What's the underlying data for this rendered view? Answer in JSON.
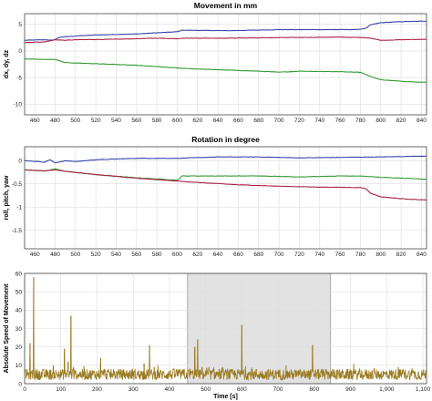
{
  "chart_data": [
    {
      "type": "line",
      "title": "Movement in mm",
      "xlabel": "",
      "ylabel": "dx, dy, dz",
      "xlim": [
        450,
        845
      ],
      "ylim": [
        -12,
        7
      ],
      "xticks": [
        460,
        480,
        500,
        520,
        540,
        560,
        580,
        600,
        620,
        640,
        660,
        680,
        700,
        720,
        740,
        760,
        780,
        800,
        820,
        840
      ],
      "yticks": [
        5,
        0,
        -5,
        -10
      ],
      "grid": true,
      "series": [
        {
          "color": "#3344aa",
          "x": [
            450,
            470,
            478,
            485,
            500,
            520,
            560,
            600,
            605,
            650,
            700,
            750,
            775,
            785,
            790,
            800,
            820,
            845
          ],
          "y": [
            2.0,
            2.1,
            2.0,
            2.6,
            2.8,
            3.0,
            3.2,
            3.6,
            3.9,
            3.8,
            4.0,
            4.0,
            4.0,
            4.2,
            4.9,
            5.3,
            5.5,
            5.6
          ]
        },
        {
          "color": "#aa2244",
          "x": [
            450,
            470,
            480,
            490,
            500,
            540,
            580,
            600,
            605,
            650,
            700,
            760,
            785,
            790,
            800,
            820,
            845
          ],
          "y": [
            1.6,
            1.7,
            2.1,
            2.0,
            2.1,
            2.2,
            2.4,
            2.3,
            2.4,
            2.4,
            2.5,
            2.6,
            2.5,
            2.4,
            2.0,
            2.1,
            2.2
          ]
        },
        {
          "color": "#339933",
          "x": [
            450,
            470,
            480,
            490,
            520,
            560,
            600,
            620,
            650,
            680,
            700,
            720,
            760,
            780,
            790,
            800,
            820,
            845
          ],
          "y": [
            -1.5,
            -1.6,
            -1.6,
            -2.2,
            -2.4,
            -2.7,
            -3.2,
            -3.4,
            -3.6,
            -3.8,
            -4.0,
            -3.8,
            -3.9,
            -4.0,
            -4.8,
            -5.4,
            -5.7,
            -5.9
          ]
        }
      ]
    },
    {
      "type": "line",
      "title": "Rotation in degree",
      "xlabel": "",
      "ylabel": "roll, pitch, yaw",
      "xlim": [
        450,
        845
      ],
      "ylim": [
        -1.9,
        0.3
      ],
      "xticks": [
        460,
        480,
        500,
        520,
        540,
        560,
        580,
        600,
        620,
        640,
        660,
        680,
        700,
        720,
        740,
        760,
        780,
        800,
        820,
        840
      ],
      "yticks": [
        0,
        -0.5,
        -1,
        -1.5
      ],
      "grid": true,
      "series": [
        {
          "color": "#3344aa",
          "x": [
            450,
            470,
            475,
            480,
            490,
            500,
            520,
            560,
            600,
            640,
            680,
            720,
            760,
            800,
            845
          ],
          "y": [
            0.0,
            -0.03,
            0.02,
            -0.05,
            0.0,
            -0.02,
            0.02,
            0.05,
            0.05,
            0.08,
            0.08,
            0.06,
            0.07,
            0.08,
            0.1
          ]
        },
        {
          "color": "#339933",
          "x": [
            450,
            470,
            480,
            490,
            520,
            560,
            600,
            605,
            640,
            680,
            720,
            760,
            780,
            800,
            845
          ],
          "y": [
            -0.2,
            -0.22,
            -0.18,
            -0.23,
            -0.3,
            -0.37,
            -0.42,
            -0.33,
            -0.33,
            -0.33,
            -0.35,
            -0.33,
            -0.33,
            -0.36,
            -0.4
          ]
        },
        {
          "color": "#aa2244",
          "x": [
            450,
            470,
            480,
            490,
            520,
            560,
            600,
            620,
            660,
            700,
            740,
            780,
            785,
            790,
            800,
            820,
            845
          ],
          "y": [
            -0.2,
            -0.22,
            -0.2,
            -0.23,
            -0.3,
            -0.38,
            -0.44,
            -0.47,
            -0.52,
            -0.55,
            -0.57,
            -0.58,
            -0.6,
            -0.7,
            -0.78,
            -0.82,
            -0.85
          ]
        }
      ]
    },
    {
      "type": "line",
      "title": "",
      "xlabel": "Time [s]",
      "ylabel": "Absolute Speed of Movement",
      "xlim": [
        0,
        1110
      ],
      "ylim": [
        0,
        60
      ],
      "xticks": [
        0,
        100,
        200,
        300,
        400,
        500,
        600,
        700,
        800,
        900,
        1000,
        1100
      ],
      "xticklabels": [
        "0",
        "100",
        "200",
        "300",
        "400",
        "500",
        "600",
        "700",
        "800",
        "900",
        "1,000",
        "1,100"
      ],
      "yticks": [
        0,
        10,
        20,
        30,
        40,
        50,
        60
      ],
      "grid": true,
      "highlight_range": [
        450,
        845
      ],
      "baseline_range": [
        2,
        8
      ],
      "series": [
        {
          "color": "#9a7a20",
          "spikes": [
            [
              15,
              22
            ],
            [
              25,
              58
            ],
            [
              35,
              8
            ],
            [
              110,
              19
            ],
            [
              120,
              12
            ],
            [
              128,
              37
            ],
            [
              135,
              9
            ],
            [
              210,
              14
            ],
            [
              220,
              6
            ],
            [
              330,
              11
            ],
            [
              345,
              21
            ],
            [
              358,
              9
            ],
            [
              420,
              7
            ],
            [
              470,
              20
            ],
            [
              478,
              24
            ],
            [
              490,
              9
            ],
            [
              600,
              32
            ],
            [
              640,
              7
            ],
            [
              795,
              21
            ],
            [
              820,
              6
            ]
          ]
        }
      ]
    }
  ]
}
